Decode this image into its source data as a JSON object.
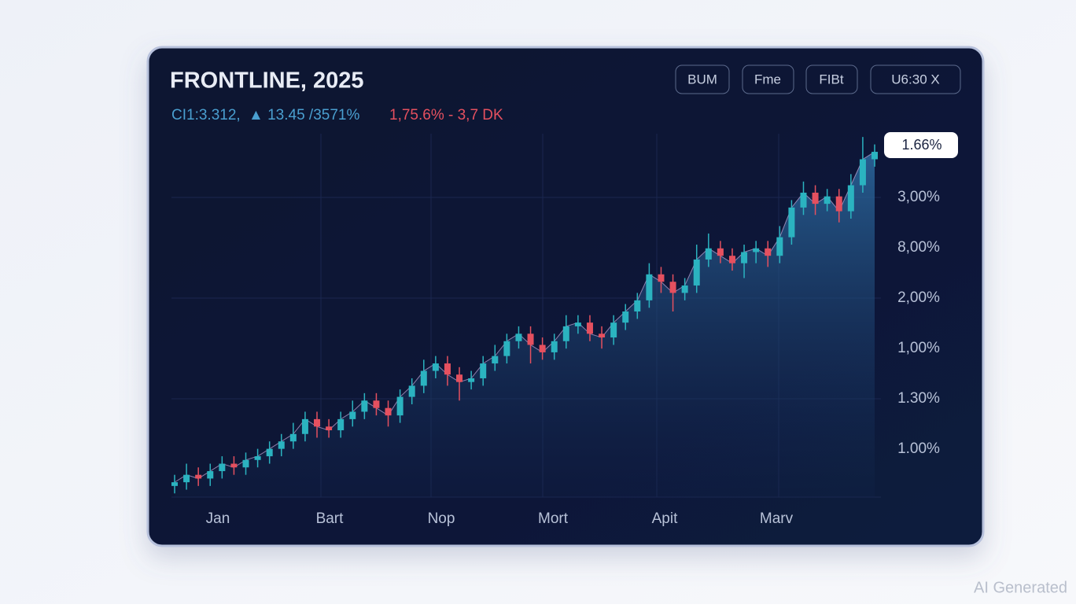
{
  "chart_data": {
    "type": "candlestick",
    "title": "FRONTLINE, 2025",
    "stats": [
      "CI1:3.312,",
      "▲ 13.45 /3571%",
      "1,75.6% - 3,7 DK"
    ],
    "buttons": [
      "BUM",
      "Fme",
      "FIBt",
      "U6:30 X"
    ],
    "price_tag": "1.66%",
    "y_labels": [
      "3,00%",
      "8,00%",
      "2,00%",
      "1,00%",
      "1.30%",
      "1.00%"
    ],
    "x_labels": [
      "Jan",
      "Bart",
      "Nop",
      "Mort",
      "Apit",
      "Marv"
    ],
    "watermark": "AI Generated",
    "up_color": "#2bb3c0",
    "down_color": "#e5505f",
    "ylim": [
      0,
      100
    ],
    "open": [
      3,
      4,
      6,
      5,
      7,
      9,
      8,
      10,
      11,
      13,
      15,
      17,
      21,
      19,
      18,
      21,
      23,
      26,
      24,
      22,
      27,
      30,
      34,
      36,
      33,
      31,
      32,
      36,
      38,
      42,
      44,
      41,
      39,
      42,
      46,
      47,
      44,
      43,
      47,
      50,
      53,
      60,
      58,
      55,
      57,
      64,
      67,
      65,
      63,
      66,
      67,
      65,
      70,
      78,
      82,
      79,
      81,
      77,
      84,
      91
    ],
    "high": [
      6,
      9,
      8,
      9,
      11,
      11,
      12,
      13,
      15,
      17,
      20,
      23,
      23,
      21,
      23,
      26,
      28,
      28,
      26,
      29,
      32,
      37,
      38,
      38,
      35,
      34,
      38,
      41,
      44,
      46,
      46,
      43,
      44,
      49,
      49,
      49,
      46,
      49,
      52,
      55,
      63,
      62,
      60,
      59,
      68,
      71,
      69,
      67,
      68,
      69,
      69,
      73,
      80,
      85,
      84,
      83,
      83,
      87,
      97,
      95
    ],
    "low": [
      1,
      2,
      3,
      3,
      5,
      6,
      6,
      8,
      9,
      11,
      13,
      15,
      16,
      16,
      16,
      19,
      21,
      22,
      19,
      20,
      25,
      28,
      32,
      30,
      26,
      29,
      30,
      34,
      36,
      40,
      36,
      37,
      37,
      40,
      44,
      42,
      40,
      41,
      45,
      48,
      51,
      55,
      50,
      53,
      55,
      62,
      63,
      61,
      59,
      63,
      62,
      63,
      68,
      76,
      76,
      77,
      74,
      75,
      82,
      89
    ],
    "close": [
      4,
      6,
      5,
      7,
      9,
      8,
      10,
      11,
      13,
      15,
      17,
      21,
      19,
      18,
      21,
      23,
      26,
      24,
      22,
      27,
      30,
      34,
      36,
      33,
      31,
      32,
      36,
      38,
      42,
      44,
      41,
      39,
      42,
      46,
      47,
      44,
      43,
      47,
      50,
      53,
      60,
      58,
      55,
      57,
      64,
      67,
      65,
      63,
      66,
      67,
      65,
      70,
      78,
      82,
      79,
      81,
      77,
      84,
      91,
      93
    ]
  }
}
